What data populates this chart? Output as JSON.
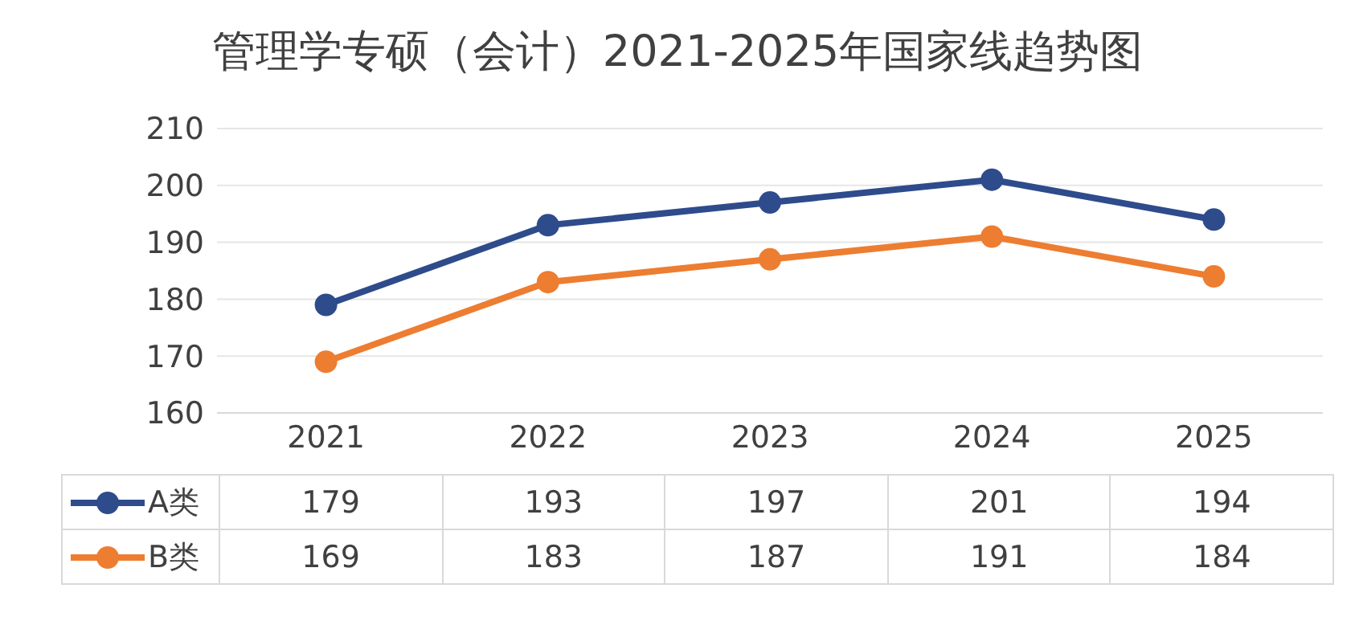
{
  "chart_data": {
    "type": "line",
    "title": "管理学专硕（会计）2021-2025年国家线趋势图",
    "categories": [
      "2021",
      "2022",
      "2023",
      "2024",
      "2025"
    ],
    "series": [
      {
        "name": "A类",
        "color": "#2e4b8c",
        "values": [
          179,
          193,
          197,
          201,
          194
        ]
      },
      {
        "name": "B类",
        "color": "#ed7d31",
        "values": [
          169,
          183,
          187,
          191,
          184
        ]
      }
    ],
    "ylim": [
      160,
      210
    ],
    "yticks": [
      160,
      170,
      180,
      190,
      200,
      210
    ],
    "grid": "y",
    "legend": "bottom",
    "marker": "circle",
    "line_style": "solid",
    "data_labels": true
  }
}
